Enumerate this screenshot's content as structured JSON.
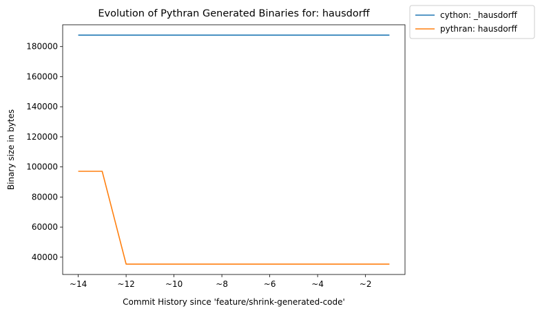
{
  "chart_data": {
    "type": "line",
    "title": "Evolution of Pythran Generated Binaries for: hausdorff",
    "xlabel": "Commit History since 'feature/shrink-generated-code'",
    "ylabel": "Binary size in bytes",
    "x": [
      -14,
      -13,
      -12,
      -11,
      -10,
      -9,
      -8,
      -7,
      -6,
      -5,
      -4,
      -3,
      -2,
      -1
    ],
    "xlim": [
      -14.65,
      -0.35
    ],
    "ylim": [
      28500,
      194500
    ],
    "x_ticks": [
      -14,
      -12,
      -10,
      -8,
      -6,
      -4,
      -2
    ],
    "x_tick_labels": [
      "~14",
      "~12",
      "~10",
      "~8",
      "~6",
      "~4",
      "~2"
    ],
    "y_ticks": [
      40000,
      60000,
      80000,
      100000,
      120000,
      140000,
      160000,
      180000
    ],
    "y_tick_labels": [
      "40000",
      "60000",
      "80000",
      "100000",
      "120000",
      "140000",
      "160000",
      "180000"
    ],
    "grid": false,
    "legend_position": "outside-top-right",
    "series": [
      {
        "name": "cython: _hausdorff",
        "color": "#1f77b4",
        "values": [
          187600,
          187600,
          187600,
          187600,
          187600,
          187600,
          187600,
          187600,
          187600,
          187600,
          187600,
          187600,
          187600,
          187600
        ]
      },
      {
        "name": "pythran: hausdorff",
        "color": "#ff7f0e",
        "values": [
          97100,
          97100,
          35400,
          35400,
          35400,
          35400,
          35400,
          35400,
          35400,
          35400,
          35400,
          35400,
          35400,
          35400
        ]
      }
    ]
  }
}
